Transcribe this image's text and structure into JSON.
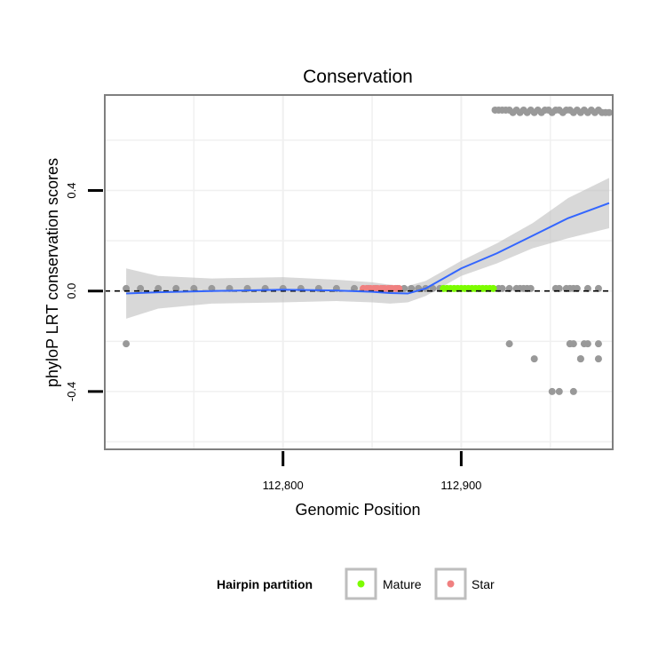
{
  "chart_data": {
    "type": "scatter",
    "title": "Conservation",
    "xlabel": "Genomic Position",
    "ylabel": "phyloP LRT conservation scores",
    "xlim": [
      112700,
      112985
    ],
    "ylim": [
      -0.63,
      0.78
    ],
    "x_ticks": [
      112800,
      112900
    ],
    "x_tick_labels": [
      "112,800",
      "112,900"
    ],
    "y_ticks": [
      -0.4,
      0.0,
      0.4
    ],
    "y_tick_labels": [
      "-0.4",
      "0.0",
      "0.4"
    ],
    "grid": true,
    "reference_line": {
      "y": 0,
      "style": "dashed"
    },
    "colors": {
      "points": "#999999",
      "mature": "#7CFC00",
      "star": "#F08080",
      "smooth_line": "#3366FF",
      "confidence_band": "#BEBEBE",
      "panel_border": "#7F7F7F",
      "grid": "#F0F0F0"
    },
    "series": [
      {
        "name": "",
        "kind": "points",
        "x": [
          112712,
          112720,
          112730,
          112740,
          112750,
          112760,
          112770,
          112780,
          112790,
          112800,
          112810,
          112820,
          112830,
          112840,
          112848,
          112852,
          112856,
          112860,
          112864,
          112868,
          112872,
          112876,
          112880,
          112884,
          112888,
          112919,
          112921,
          112923,
          112925,
          112927,
          112929,
          112931,
          112933,
          112935,
          112937,
          112939,
          112941,
          112943,
          112945,
          112947,
          112949,
          112951,
          112953,
          112955,
          112957,
          112959,
          112961,
          112963,
          112965,
          112967,
          112969,
          112971,
          112973,
          112975,
          112977,
          112979,
          112981,
          112983,
          112921,
          112923,
          112927,
          112931,
          112933,
          112935,
          112937,
          112939,
          112953,
          112955,
          112959,
          112961,
          112963,
          112965,
          112971,
          112977,
          112927,
          112961,
          112961,
          112963,
          112969,
          112971,
          112977,
          112941,
          112967,
          112977,
          112967,
          112951,
          112955,
          112963,
          112712
        ],
        "y": [
          0.01,
          0.01,
          0.01,
          0.01,
          0.01,
          0.01,
          0.01,
          0.01,
          0.01,
          0.01,
          0.01,
          0.01,
          0.01,
          0.01,
          0.01,
          0.01,
          0.01,
          0.01,
          0.01,
          0.01,
          0.01,
          0.01,
          0.01,
          0.01,
          0.01,
          0.72,
          0.72,
          0.72,
          0.72,
          0.72,
          0.71,
          0.72,
          0.71,
          0.72,
          0.71,
          0.72,
          0.71,
          0.72,
          0.71,
          0.72,
          0.72,
          0.71,
          0.72,
          0.72,
          0.71,
          0.72,
          0.72,
          0.71,
          0.72,
          0.71,
          0.72,
          0.71,
          0.72,
          0.71,
          0.72,
          0.71,
          0.71,
          0.71,
          0.01,
          0.01,
          0.01,
          0.01,
          0.01,
          0.01,
          0.01,
          0.01,
          0.01,
          0.01,
          0.01,
          0.01,
          0.01,
          0.01,
          0.01,
          0.01,
          -0.21,
          -0.21,
          -0.21,
          -0.21,
          -0.21,
          -0.21,
          -0.21,
          -0.27,
          -0.27,
          -0.27,
          -0.27,
          -0.4,
          -0.4,
          -0.4,
          -0.21
        ]
      },
      {
        "name": "Mature",
        "kind": "points",
        "x": [
          112890,
          112892,
          112894,
          112896,
          112898,
          112900,
          112902,
          112904,
          112906,
          112908,
          112910,
          112912,
          112914,
          112916,
          112918
        ],
        "y": [
          0.01,
          0.01,
          0.01,
          0.01,
          0.01,
          0.01,
          0.01,
          0.01,
          0.01,
          0.01,
          0.01,
          0.01,
          0.01,
          0.01,
          0.01
        ]
      },
      {
        "name": "Star",
        "kind": "points",
        "x": [
          112845,
          112847,
          112849,
          112851,
          112853,
          112855,
          112857,
          112859,
          112861,
          112863,
          112865
        ],
        "y": [
          0.01,
          0.01,
          0.01,
          0.01,
          0.01,
          0.01,
          0.01,
          0.01,
          0.01,
          0.01,
          0.01
        ]
      },
      {
        "name": "",
        "kind": "smooth",
        "x": [
          112712,
          112730,
          112760,
          112800,
          112830,
          112850,
          112860,
          112870,
          112880,
          112890,
          112900,
          112920,
          112940,
          112960,
          112983
        ],
        "y": [
          -0.01,
          -0.005,
          0.0,
          0.005,
          0.002,
          -0.003,
          -0.008,
          -0.01,
          0.01,
          0.05,
          0.09,
          0.15,
          0.22,
          0.29,
          0.35
        ],
        "upper": [
          0.09,
          0.06,
          0.05,
          0.055,
          0.045,
          0.035,
          0.025,
          0.02,
          0.04,
          0.08,
          0.12,
          0.19,
          0.27,
          0.37,
          0.45
        ],
        "lower": [
          -0.11,
          -0.07,
          -0.05,
          -0.045,
          -0.04,
          -0.045,
          -0.05,
          -0.045,
          -0.02,
          0.02,
          0.06,
          0.11,
          0.17,
          0.21,
          0.25
        ]
      }
    ],
    "legend": {
      "title": "Hairpin partition",
      "position": "bottom",
      "entries": [
        {
          "label": "Mature",
          "color": "#7CFC00"
        },
        {
          "label": "Star",
          "color": "#F08080"
        }
      ]
    }
  }
}
